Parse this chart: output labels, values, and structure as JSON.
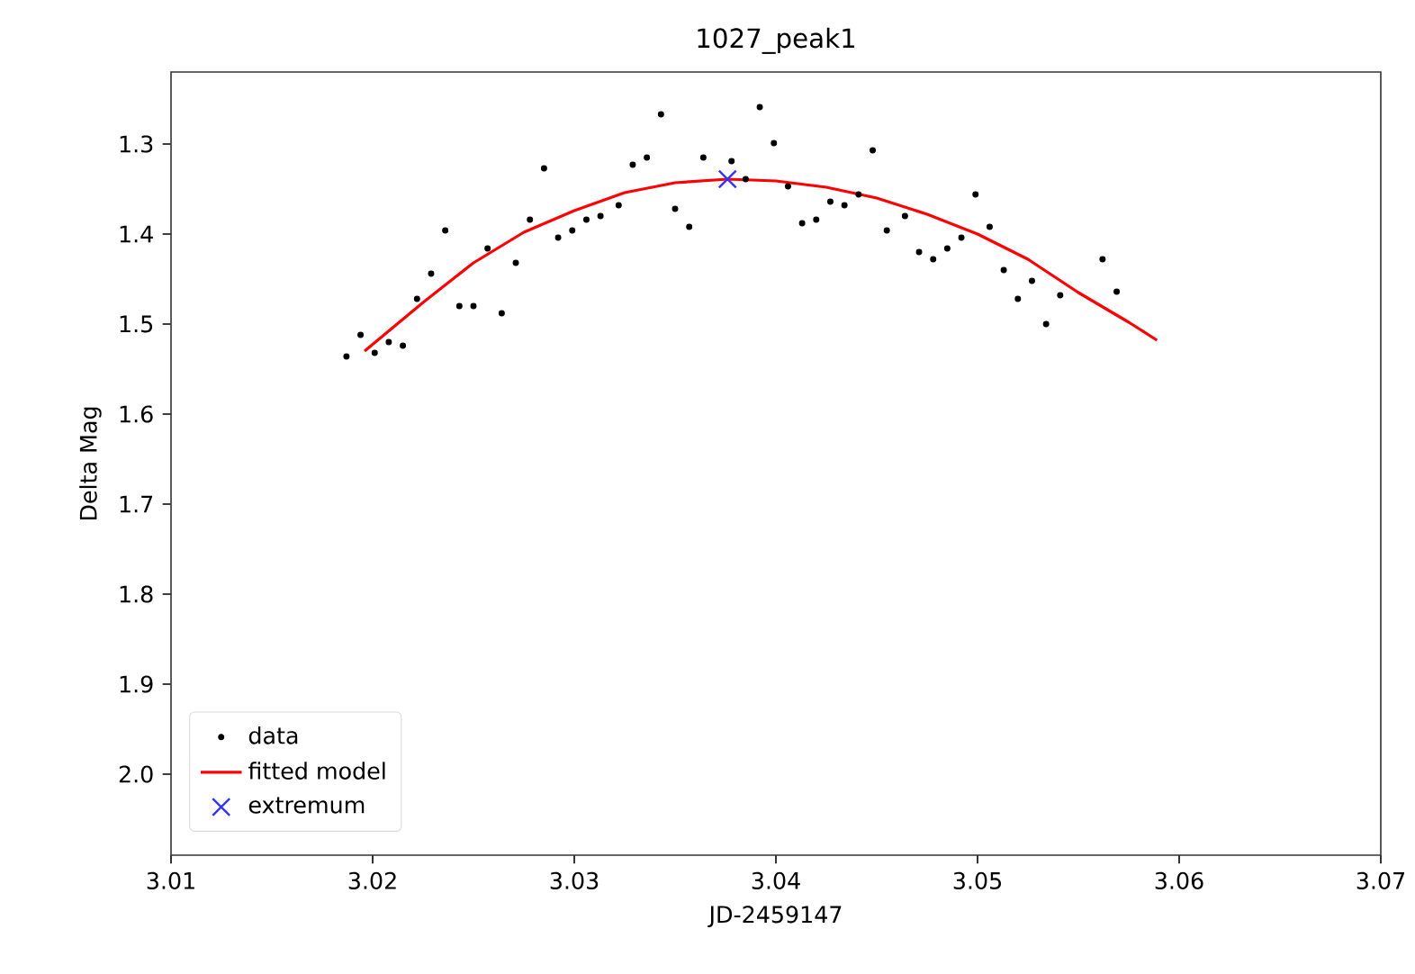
{
  "chart_data": {
    "type": "scatter",
    "title": "1027_peak1",
    "xlabel": "JD-2459147",
    "ylabel": "Delta Mag",
    "xlim": [
      3.01,
      3.07
    ],
    "xticks": [
      3.01,
      3.02,
      3.03,
      3.04,
      3.05,
      3.06,
      3.07
    ],
    "ylim": [
      2.09,
      1.22
    ],
    "yticks": [
      1.3,
      1.4,
      1.5,
      1.6,
      1.7,
      1.8,
      1.9,
      {
        "value": 2.0,
        "label": "2.0"
      }
    ],
    "grid": false,
    "legend": "bottom left",
    "series": [
      {
        "name": "data",
        "type": "scatter",
        "marker": "circle",
        "color": "#000000",
        "x": [
          3.0187,
          3.0194,
          3.0201,
          3.0208,
          3.0215,
          3.0222,
          3.0229,
          3.0236,
          3.0243,
          3.025,
          3.0257,
          3.0264,
          3.0271,
          3.0278,
          3.0285,
          3.0292,
          3.0299,
          3.0306,
          3.0313,
          3.0322,
          3.0329,
          3.0336,
          3.0343,
          3.035,
          3.0357,
          3.0364,
          3.0378,
          3.0385,
          3.0392,
          3.0399,
          3.0406,
          3.0413,
          3.042,
          3.0427,
          3.0434,
          3.0441,
          3.0448,
          3.0455,
          3.0464,
          3.0471,
          3.0478,
          3.0485,
          3.0492,
          3.0499,
          3.0506,
          3.0513,
          3.052,
          3.0527,
          3.0534,
          3.0541,
          3.0562,
          3.0569
        ],
        "values": [
          1.536,
          1.512,
          1.532,
          1.52,
          1.524,
          1.472,
          1.444,
          1.396,
          1.48,
          1.48,
          1.416,
          1.488,
          1.432,
          1.384,
          1.327,
          1.404,
          1.396,
          1.384,
          1.38,
          1.368,
          1.323,
          1.315,
          1.267,
          1.372,
          1.392,
          1.315,
          1.319,
          1.339,
          1.259,
          1.299,
          1.347,
          1.388,
          1.384,
          1.364,
          1.368,
          1.356,
          1.307,
          1.396,
          1.38,
          1.42,
          1.428,
          1.416,
          1.404,
          1.356,
          1.392,
          1.44,
          1.472,
          1.452,
          1.5,
          1.468,
          1.428,
          1.464
        ]
      },
      {
        "name": "fitted model",
        "type": "line",
        "marker": "none",
        "line_style": "solid",
        "color": "#ff0000",
        "x": [
          3.0196,
          3.0225,
          3.025,
          3.0275,
          3.03,
          3.0325,
          3.035,
          3.0376,
          3.04,
          3.0425,
          3.045,
          3.0475,
          3.05,
          3.0525,
          3.055,
          3.0575,
          3.0589
        ],
        "values": [
          1.53,
          1.476,
          1.432,
          1.398,
          1.374,
          1.354,
          1.343,
          1.339,
          1.341,
          1.348,
          1.36,
          1.378,
          1.4,
          1.428,
          1.465,
          1.498,
          1.518
        ]
      },
      {
        "name": "extremum",
        "type": "scatter",
        "marker": "cross",
        "color": "#3333ff",
        "x": [
          3.0376
        ],
        "values": [
          1.339
        ]
      }
    ]
  }
}
